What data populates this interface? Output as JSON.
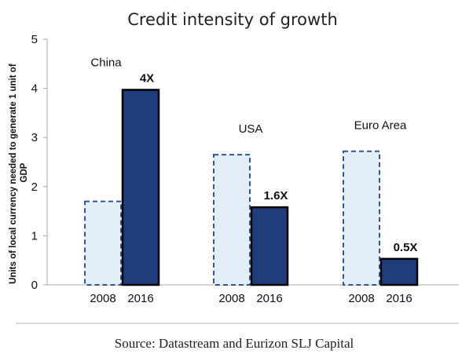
{
  "chart_data": {
    "type": "bar",
    "title": "Credit intensity of growth",
    "ylabel": "Units of local currency needed to generate 1 unit of GDP",
    "xlabel": "",
    "ylim": [
      0,
      5
    ],
    "yticks": [
      0,
      1,
      2,
      3,
      4,
      5
    ],
    "grid": false,
    "legend": "none",
    "groups": [
      {
        "name": "China",
        "categories": [
          "2008",
          "2016"
        ],
        "values": [
          1.7,
          3.97
        ],
        "data_labels": [
          "",
          "4X"
        ]
      },
      {
        "name": "USA",
        "categories": [
          "2008",
          "2016"
        ],
        "values": [
          2.65,
          1.58
        ],
        "data_labels": [
          "",
          "1.6X"
        ]
      },
      {
        "name": "Euro Area",
        "categories": [
          "2008",
          "2016"
        ],
        "values": [
          2.72,
          0.53
        ],
        "data_labels": [
          "",
          "0.5X"
        ]
      }
    ],
    "colors": {
      "bar_2008_fill": "#e4eef9",
      "bar_2008_stroke": "#2f5597",
      "bar_2016_fill": "#1f3d7a",
      "bar_2016_stroke": "#000000",
      "axis": "#aaaaaa",
      "separator": "#bbbbbb"
    }
  },
  "source": "Source:  Datastream and Eurizon SLJ Capital"
}
